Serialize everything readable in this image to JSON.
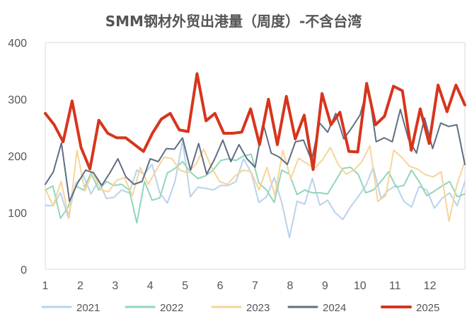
{
  "chart_data": {
    "type": "line",
    "title": "SMM钢材外贸出港量（周度）-不含台湾",
    "xlabel": "",
    "ylabel": "",
    "x_ticks": [
      "1",
      "2",
      "3",
      "4",
      "5",
      "6",
      "7",
      "8",
      "9",
      "10",
      "11",
      "12"
    ],
    "xlim": [
      1,
      13
    ],
    "ylim": [
      0,
      400
    ],
    "y_ticks": [
      0,
      100,
      200,
      300,
      400
    ],
    "grid": false,
    "legend_position": "bottom",
    "series": [
      {
        "name": "2021",
        "color": "#b9d3ec",
        "width": 2,
        "values": [
          113,
          112,
          135,
          92,
          152,
          165,
          133,
          157,
          125,
          127,
          140,
          135,
          175,
          168,
          185,
          135,
          117,
          155,
          227,
          128,
          145,
          143,
          140,
          148,
          148,
          155,
          195,
          170,
          118,
          128,
          162,
          118,
          56,
          120,
          115,
          160,
          113,
          122,
          100,
          88,
          110,
          128,
          147,
          180,
          125,
          140,
          148,
          120,
          110,
          146,
          140,
          108,
          125,
          135,
          112,
          155
        ]
      },
      {
        "name": "2022",
        "color": "#93d6b8",
        "width": 2,
        "values": [
          140,
          147,
          90,
          110,
          147,
          140,
          170,
          140,
          155,
          148,
          150,
          140,
          82,
          155,
          122,
          126,
          170,
          178,
          190,
          172,
          160,
          165,
          175,
          192,
          195,
          192,
          200,
          203,
          152,
          140,
          118,
          175,
          168,
          132,
          140,
          135,
          135,
          133,
          155,
          178,
          180,
          168,
          135,
          140,
          155,
          172,
          145,
          148,
          175,
          155,
          130,
          138,
          147,
          155,
          128,
          133
        ]
      },
      {
        "name": "2023",
        "color": "#f6d49a",
        "width": 2,
        "values": [
          142,
          112,
          155,
          90,
          210,
          138,
          173,
          140,
          137,
          157,
          162,
          130,
          180,
          150,
          175,
          198,
          195,
          175,
          170,
          185,
          212,
          180,
          155,
          150,
          165,
          175,
          172,
          140,
          180,
          130,
          210,
          160,
          196,
          187,
          178,
          193,
          215,
          185,
          168,
          175,
          190,
          218,
          120,
          130,
          210,
          198,
          182,
          177,
          167,
          163,
          172,
          85,
          150,
          190
        ]
      },
      {
        "name": "2024",
        "color": "#5f6e82",
        "width": 2,
        "values": [
          150,
          172,
          223,
          120,
          152,
          175,
          170,
          148,
          170,
          195,
          163,
          150,
          155,
          195,
          190,
          213,
          212,
          232,
          175,
          222,
          168,
          195,
          228,
          190,
          220,
          195,
          180,
          257,
          205,
          198,
          185,
          225,
          228,
          192,
          258,
          242,
          275,
          230,
          250,
          272,
          323,
          225,
          232,
          225,
          282,
          230,
          205,
          267,
          213,
          258,
          252,
          255,
          185
        ]
      },
      {
        "name": "2025",
        "color": "#d7351c",
        "width": 4,
        "values": [
          275,
          255,
          225,
          297,
          215,
          177,
          263,
          240,
          232,
          232,
          220,
          208,
          240,
          265,
          275,
          246,
          243,
          345,
          262,
          275,
          240,
          240,
          242,
          283,
          220,
          300,
          220,
          305,
          230,
          272,
          176,
          310,
          255,
          277,
          208,
          207,
          328,
          255,
          270,
          323,
          315,
          210,
          283,
          222,
          325,
          278,
          325,
          290
        ]
      }
    ]
  }
}
